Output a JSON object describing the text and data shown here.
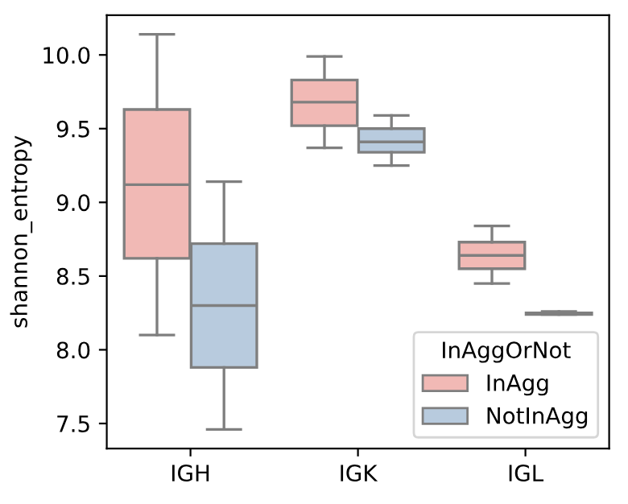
{
  "chart_data": {
    "type": "box",
    "ylabel": "shannon_entropy",
    "categories": [
      "IGH",
      "IGK",
      "IGL"
    ],
    "legend_title": "InAggOrNot",
    "legend": "bottom right",
    "grid": false,
    "ylim": [
      7.33,
      10.27
    ],
    "yticks": [
      7.5,
      {
        "value": 8,
        "label": "8.0"
      },
      8.5,
      {
        "value": 9,
        "label": "9.0"
      },
      9.5,
      {
        "value": 10,
        "label": "10.0"
      }
    ],
    "series": [
      {
        "name": "InAgg",
        "color": "#f1b9b5",
        "boxes": [
          {
            "low": 8.1,
            "q1": 8.62,
            "median": 9.12,
            "q3": 9.63,
            "high": 10.14
          },
          {
            "low": 9.37,
            "q1": 9.52,
            "median": 9.68,
            "q3": 9.83,
            "high": 9.99
          },
          {
            "low": 8.45,
            "q1": 8.55,
            "median": 8.64,
            "q3": 8.73,
            "high": 8.84
          }
        ]
      },
      {
        "name": "NotInAgg",
        "color": "#b8cbde",
        "boxes": [
          {
            "low": 7.46,
            "q1": 7.88,
            "median": 8.3,
            "q3": 8.72,
            "high": 9.14
          },
          {
            "low": 9.25,
            "q1": 9.34,
            "median": 9.41,
            "q3": 9.5,
            "high": 9.59
          },
          {
            "low": 8.24,
            "q1": 8.24,
            "median": 8.25,
            "q3": 8.25,
            "high": 8.26
          }
        ]
      }
    ]
  }
}
